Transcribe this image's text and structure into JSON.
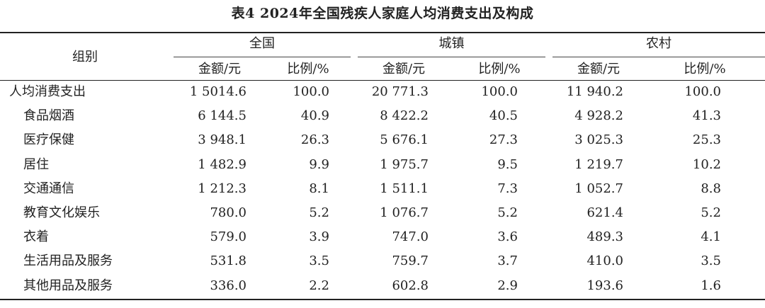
{
  "table": {
    "title": "表4  2024年全国残疾人家庭人均消费支出及构成",
    "header": {
      "group_label": "组别",
      "groups": [
        "全国",
        "城镇",
        "农村"
      ],
      "subcolumns": [
        "金额/元",
        "比例/%"
      ]
    },
    "rows": [
      {
        "label": "人均消费支出",
        "values": [
          "1 5014.6",
          "100.0",
          "20 771.3",
          "100.0",
          "11 940.2",
          "100.0"
        ]
      },
      {
        "label": "食品烟酒",
        "values": [
          "6 144.5",
          "40.9",
          "8 422.2",
          "40.5",
          "4 928.2",
          "41.3"
        ]
      },
      {
        "label": "医疗保健",
        "values": [
          "3 948.1",
          "26.3",
          "5 676.1",
          "27.3",
          "3 025.3",
          "25.3"
        ]
      },
      {
        "label": "居住",
        "values": [
          "1 482.9",
          "9.9",
          "1 975.7",
          "9.5",
          "1 219.7",
          "10.2"
        ]
      },
      {
        "label": "交通通信",
        "values": [
          "1 212.3",
          "8.1",
          "1 511.1",
          "7.3",
          "1 052.7",
          "8.8"
        ]
      },
      {
        "label": "教育文化娱乐",
        "values": [
          "780.0",
          "5.2",
          "1 076.7",
          "5.2",
          "621.4",
          "5.2"
        ]
      },
      {
        "label": "衣着",
        "values": [
          "579.0",
          "3.9",
          "747.0",
          "3.6",
          "489.3",
          "4.1"
        ]
      },
      {
        "label": "生活用品及服务",
        "values": [
          "531.8",
          "3.5",
          "759.7",
          "3.7",
          "410.0",
          "3.5"
        ]
      },
      {
        "label": "其他用品及服务",
        "values": [
          "336.0",
          "2.2",
          "602.8",
          "2.9",
          "193.6",
          "1.6"
        ]
      }
    ]
  }
}
